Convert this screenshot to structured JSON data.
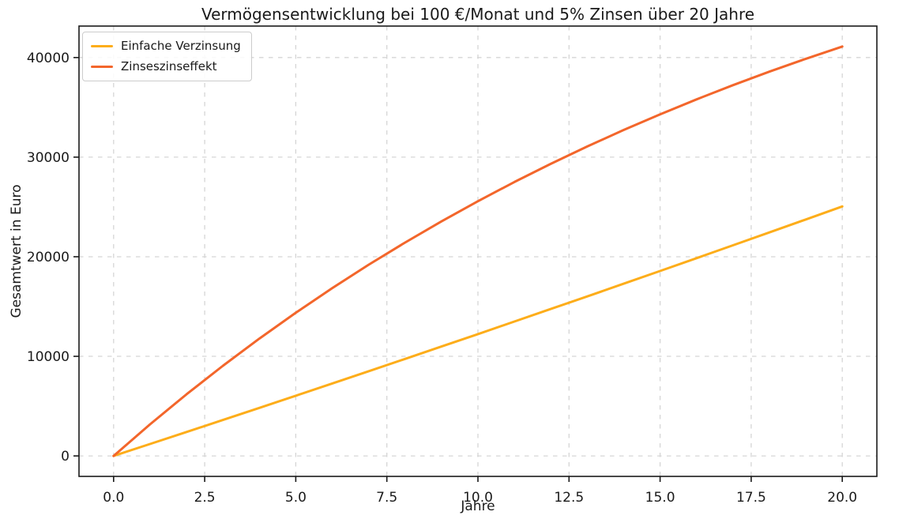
{
  "chart_data": {
    "type": "line",
    "title": "Vermögensentwicklung bei 100 €/Monat und 5% Zinsen über 20 Jahre",
    "xlabel": "Jahre",
    "ylabel": "Gesamtwert in Euro",
    "grid": true,
    "legend_position": "upper left",
    "background_color": "#ffffff",
    "grid_color": "#d5d5d5",
    "axis_color": "#1a1a1a",
    "xlim": [
      -0.95,
      20.95
    ],
    "ylim": [
      -2055,
      43160
    ],
    "xticks": [
      0,
      2.5,
      5,
      7.5,
      10,
      12.5,
      15,
      17.5,
      20
    ],
    "xtick_labels": [
      "0.0",
      "2.5",
      "5.0",
      "7.5",
      "10.0",
      "12.5",
      "15.0",
      "17.5",
      "20.0"
    ],
    "yticks": [
      0,
      10000,
      20000,
      30000,
      40000
    ],
    "ytick_labels": [
      "0",
      "10000",
      "20000",
      "30000",
      "40000"
    ],
    "x": [
      0,
      1,
      2,
      3,
      4,
      5,
      6,
      7,
      8,
      9,
      10,
      11,
      12,
      13,
      14,
      15,
      16,
      17,
      18,
      19,
      20
    ],
    "series": [
      {
        "name": "Einfache Verzinsung",
        "color": "#fdad1a",
        "values": [
          0,
          1197,
          2400,
          3609,
          4824,
          6044,
          7270,
          8503,
          9741,
          10984,
          12234,
          13489,
          14751,
          16018,
          17291,
          18569,
          19854,
          21144,
          22441,
          23743,
          25050
        ]
      },
      {
        "name": "Zinseszinseffekt",
        "color": "#f3662b",
        "values": [
          0,
          3169,
          6184,
          9051,
          11780,
          14375,
          16844,
          19193,
          21427,
          23553,
          25575,
          27499,
          29329,
          31071,
          32727,
          34303,
          35802,
          37228,
          38585,
          39876,
          41103
        ]
      }
    ]
  }
}
